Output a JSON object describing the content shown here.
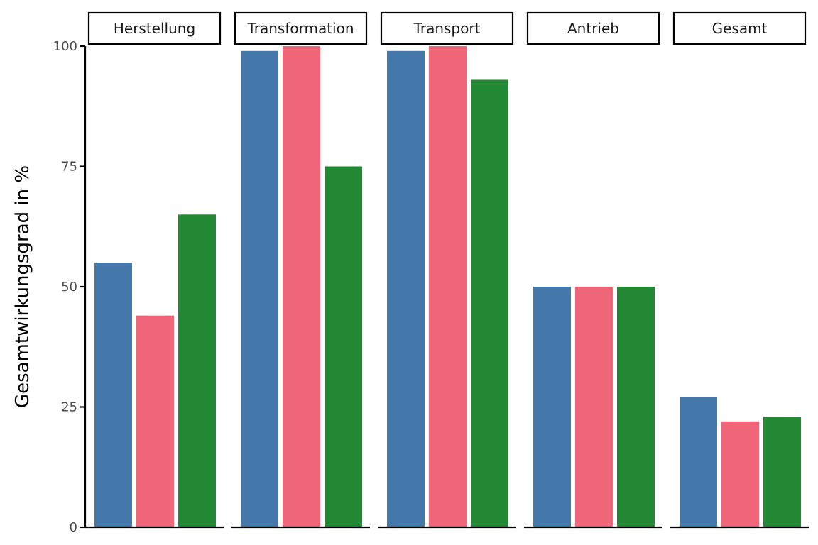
{
  "chart_data": {
    "type": "bar",
    "ylabel": "Gesamtwirkungsgrad in %",
    "xlabel": "",
    "ylim": [
      0,
      100
    ],
    "yticks": [
      0,
      25,
      50,
      75,
      100
    ],
    "grid": false,
    "legend": "none",
    "facet_colors": [
      "#4477aa",
      "#ee6677",
      "#228833"
    ],
    "facets": [
      {
        "label": "Herstellung",
        "values": [
          55,
          44,
          65
        ]
      },
      {
        "label": "Transformation",
        "values": [
          99,
          100,
          75
        ]
      },
      {
        "label": "Transport",
        "values": [
          99,
          100,
          93
        ]
      },
      {
        "label": "Antrieb",
        "values": [
          50,
          50,
          50
        ]
      },
      {
        "label": "Gesamt",
        "values": [
          27,
          22,
          23
        ]
      }
    ]
  }
}
